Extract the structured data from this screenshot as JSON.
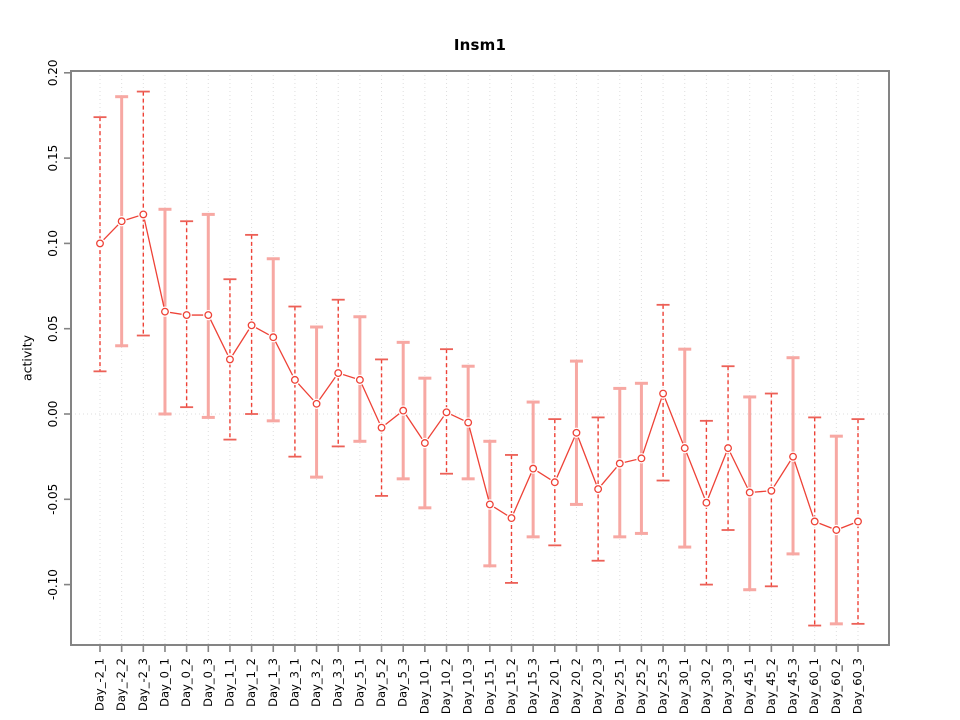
{
  "chart_data": {
    "type": "line",
    "subtype": "points-with-error-bars",
    "title": "Insm1",
    "xlabel": "",
    "ylabel": "activity",
    "ylim": [
      -0.135,
      0.201
    ],
    "grid": {
      "vertical_dotted_per_category": true,
      "horizontal_dotted_at_zero": true
    },
    "legend": "none",
    "yticks": [
      0.2,
      0.15,
      0.1,
      0.05,
      0.0,
      -0.05,
      -0.1
    ],
    "ytick_labels": [
      "0.20",
      "0.15",
      "0.10",
      "0.05",
      "0.00",
      "-0.05",
      "-0.10"
    ],
    "categories": [
      "Day_-2_1",
      "Day_-2_2",
      "Day_-2_3",
      "Day_0_1",
      "Day_0_2",
      "Day_0_3",
      "Day_1_1",
      "Day_1_2",
      "Day_1_3",
      "Day_3_1",
      "Day_3_2",
      "Day_3_3",
      "Day_5_1",
      "Day_5_2",
      "Day_5_3",
      "Day_10_1",
      "Day_10_2",
      "Day_10_3",
      "Day_15_1",
      "Day_15_2",
      "Day_15_3",
      "Day_20_1",
      "Day_20_2",
      "Day_20_3",
      "Day_25_1",
      "Day_25_2",
      "Day_25_3",
      "Day_30_1",
      "Day_30_2",
      "Day_30_3",
      "Day_45_1",
      "Day_45_2",
      "Day_45_3",
      "Day_60_1",
      "Day_60_2",
      "Day_60_3"
    ],
    "series": [
      {
        "name": "activity",
        "values": [
          0.1,
          0.113,
          0.117,
          0.06,
          0.058,
          0.058,
          0.032,
          0.052,
          0.045,
          0.02,
          0.006,
          0.024,
          0.02,
          -0.008,
          0.002,
          -0.017,
          0.001,
          -0.005,
          -0.053,
          -0.061,
          -0.032,
          -0.04,
          -0.011,
          -0.044,
          -0.029,
          -0.026,
          0.012,
          -0.02,
          -0.052,
          -0.02,
          -0.046,
          -0.045,
          -0.025,
          -0.063,
          -0.068,
          -0.063
        ],
        "upper": [
          0.174,
          0.186,
          0.189,
          0.12,
          0.113,
          0.117,
          0.079,
          0.105,
          0.091,
          0.063,
          0.051,
          0.067,
          0.057,
          0.032,
          0.042,
          0.021,
          0.038,
          0.028,
          -0.016,
          -0.024,
          0.007,
          -0.003,
          0.031,
          -0.002,
          0.015,
          0.018,
          0.064,
          0.038,
          -0.004,
          0.028,
          0.01,
          0.012,
          0.033,
          -0.002,
          -0.013,
          -0.003
        ],
        "lower": [
          0.025,
          0.04,
          0.046,
          0.0,
          0.004,
          -0.002,
          -0.015,
          0.0,
          -0.004,
          -0.025,
          -0.037,
          -0.019,
          -0.016,
          -0.048,
          -0.038,
          -0.055,
          -0.035,
          -0.038,
          -0.089,
          -0.099,
          -0.072,
          -0.077,
          -0.053,
          -0.086,
          -0.072,
          -0.07,
          -0.039,
          -0.078,
          -0.1,
          -0.068,
          -0.103,
          -0.101,
          -0.082,
          -0.124,
          -0.123,
          -0.123
        ],
        "bar_styles": [
          "dashed",
          "pink",
          "dashed",
          "pink",
          "dashed",
          "pink",
          "dashed",
          "dashed",
          "pink",
          "dashed",
          "pink",
          "dashed",
          "pink",
          "dashed",
          "pink",
          "pink",
          "dashed",
          "pink",
          "pink",
          "dashed",
          "pink",
          "dashed",
          "pink",
          "dashed",
          "pink",
          "pink",
          "dashed",
          "pink",
          "dashed",
          "dashed",
          "pink",
          "dashed",
          "pink",
          "dashed",
          "pink",
          "dashed"
        ]
      }
    ],
    "colors": {
      "series_red": "#ee4237",
      "bar_pink": "#f7a8a3",
      "grid": "#dedede",
      "axis_box": "#848484",
      "text": "#000000"
    }
  }
}
